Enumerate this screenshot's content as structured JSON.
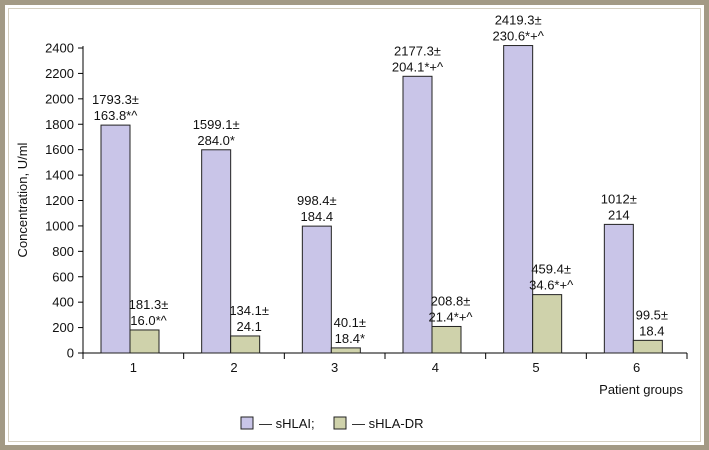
{
  "chart_data": {
    "type": "bar",
    "categories": [
      "1",
      "2",
      "3",
      "4",
      "5",
      "6"
    ],
    "series": [
      {
        "name": "sHLAI",
        "legend_text": "— sHLAI;",
        "color": "#c9c5e8",
        "values": [
          1793.3,
          1599.1,
          998.4,
          2177.3,
          2419.3,
          1012
        ],
        "labels": [
          [
            "1793.3±",
            "163.8*^"
          ],
          [
            "1599.1±",
            "284.0*"
          ],
          [
            "998.4±",
            "184.4"
          ],
          [
            "2177.3±",
            "204.1*+^"
          ],
          [
            "2419.3±",
            "230.6*+^"
          ],
          [
            "1012±",
            "214"
          ]
        ]
      },
      {
        "name": "sHLA-DR",
        "legend_text": "— sHLA-DR",
        "color": "#cfd2ab",
        "values": [
          181.3,
          134.1,
          40.1,
          208.8,
          459.4,
          99.5
        ],
        "labels": [
          [
            "181.3±",
            "16.0*^"
          ],
          [
            "134.1±",
            "24.1"
          ],
          [
            "40.1±",
            "18.4*"
          ],
          [
            "208.8±",
            "21.4*+^"
          ],
          [
            "459.4±",
            "34.6*+^"
          ],
          [
            "99.5±",
            "18.4"
          ]
        ]
      }
    ],
    "ylabel": "Concentration, U/ml",
    "xlabel": "Patient groups",
    "ylim": [
      0,
      2400
    ],
    "yticks": [
      "0",
      "200",
      "400",
      "600",
      "800",
      "1000",
      "1200",
      "1400",
      "1600",
      "1800",
      "2000",
      "2200",
      "2400"
    ],
    "grid": false,
    "legend_position": "bottom"
  }
}
